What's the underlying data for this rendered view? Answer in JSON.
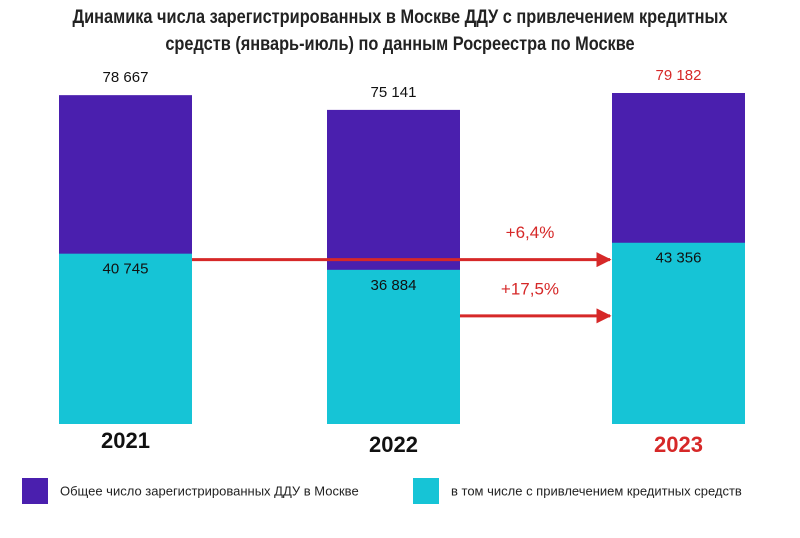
{
  "chart_data": {
    "type": "bar",
    "title": "Динамика числа зарегистрированных в Москве ДДУ с привлечением кредитных средств (январь-июль) по данным Росреестра по Москве",
    "categories": [
      "2021",
      "2022",
      "2023"
    ],
    "series": [
      {
        "name": "Общее число зарегистрированных ДДУ в Москве",
        "color": "#4a1fae",
        "values": [
          78667,
          75141,
          79182
        ],
        "value_labels": [
          "78 667",
          "75 141",
          "79 182"
        ]
      },
      {
        "name": "в том числе с привлечением кредитных средств",
        "color": "#16c4d6",
        "values": [
          40745,
          36884,
          43356
        ],
        "value_labels": [
          "40 745",
          "36 884",
          "43 356"
        ]
      }
    ],
    "annotations": [
      "+6,4%",
      "+17,5%"
    ],
    "highlight_color": "#d62828"
  }
}
